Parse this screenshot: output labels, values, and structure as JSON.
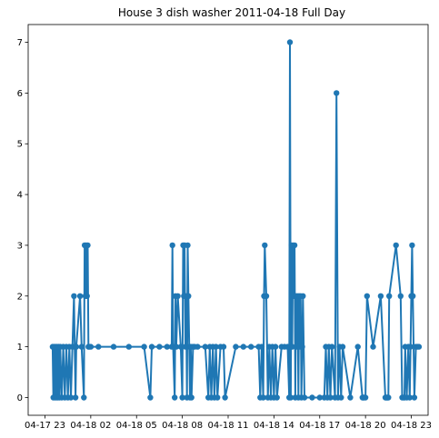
{
  "chart_data": {
    "type": "line",
    "title": "House 3 dish washer 2011-04-18 Full Day",
    "xlabel": "",
    "ylabel": "",
    "color": "#1f77b4",
    "xlim_hours": [
      -1.6,
      24.6
    ],
    "ylim": [
      -0.35,
      7.35
    ],
    "grid": false,
    "x_ticks": [
      {
        "hour": -0.5,
        "label": "04-17 23"
      },
      {
        "hour": 2.5,
        "label": "04-18 02"
      },
      {
        "hour": 5.5,
        "label": "04-18 05"
      },
      {
        "hour": 8.5,
        "label": "04-18 08"
      },
      {
        "hour": 11.5,
        "label": "04-18 11"
      },
      {
        "hour": 14.5,
        "label": "04-18 14"
      },
      {
        "hour": 17.5,
        "label": "04-18 17"
      },
      {
        "hour": 20.5,
        "label": "04-18 20"
      },
      {
        "hour": 23.5,
        "label": "04-18 23"
      }
    ],
    "y_ticks": [
      0,
      1,
      2,
      3,
      4,
      5,
      6,
      7
    ],
    "series": [
      {
        "x_hours": [
          0.0,
          0.05,
          0.1,
          0.15,
          0.2,
          0.25,
          0.3,
          0.35,
          0.4,
          0.45,
          0.5,
          0.6,
          0.7,
          0.8,
          0.9,
          1.0,
          1.1,
          1.2,
          1.3,
          1.4,
          1.45,
          1.5,
          1.55,
          1.8,
          1.9,
          2.05,
          2.1,
          2.15,
          2.2,
          2.25,
          2.3,
          2.35,
          2.4,
          2.5,
          3.0,
          4.0,
          5.0,
          6.0,
          6.4,
          6.5,
          7.0,
          7.5,
          7.8,
          7.85,
          7.9,
          8.0,
          8.05,
          8.1,
          8.2,
          8.4,
          8.5,
          8.55,
          8.6,
          8.65,
          8.7,
          8.75,
          8.8,
          8.85,
          8.9,
          8.95,
          9.0,
          9.05,
          9.1,
          9.2,
          9.3,
          9.5,
          10.0,
          10.2,
          10.3,
          10.4,
          10.5,
          10.6,
          10.7,
          10.8,
          11.0,
          11.2,
          11.3,
          12.0,
          12.5,
          13.0,
          13.5,
          13.6,
          13.7,
          13.8,
          13.85,
          13.9,
          14.0,
          14.1,
          14.2,
          14.3,
          14.4,
          14.5,
          14.6,
          14.7,
          15.0,
          15.2,
          15.4,
          15.5,
          15.55,
          15.6,
          15.65,
          15.7,
          15.75,
          15.8,
          15.85,
          15.9,
          15.95,
          16.0,
          16.05,
          16.1,
          16.15,
          16.2,
          16.25,
          16.3,
          16.35,
          16.4,
          16.5,
          17.0,
          17.5,
          17.8,
          17.9,
          18.0,
          18.1,
          18.2,
          18.3,
          18.5,
          18.6,
          18.7,
          18.8,
          18.9,
          19.0,
          19.5,
          20.0,
          20.3,
          20.35,
          20.4,
          20.5,
          20.6,
          21.0,
          21.5,
          21.8,
          21.85,
          21.9,
          21.95,
          22.0,
          22.05,
          22.5,
          22.8,
          22.9,
          23.0,
          23.05,
          23.1,
          23.2,
          23.3,
          23.4,
          23.45,
          23.5,
          23.55,
          23.6,
          23.7,
          23.8,
          23.9,
          24.0
        ],
        "y_values": [
          1,
          0,
          1,
          0,
          1,
          0,
          1,
          0,
          1,
          0,
          1,
          0,
          1,
          0,
          1,
          0,
          1,
          0,
          1,
          2,
          1,
          0,
          1,
          2,
          1,
          0,
          3,
          2,
          3,
          2,
          3,
          1,
          1,
          1,
          1,
          1,
          1,
          1,
          0,
          1,
          1,
          1,
          1,
          3,
          1,
          0,
          2,
          1,
          2,
          1,
          0,
          3,
          2,
          3,
          1,
          2,
          0,
          3,
          2,
          1,
          0,
          1,
          0,
          1,
          1,
          1,
          1,
          0,
          1,
          0,
          1,
          0,
          1,
          0,
          1,
          1,
          0,
          1,
          1,
          1,
          1,
          0,
          1,
          0,
          2,
          3,
          2,
          0,
          1,
          0,
          1,
          0,
          1,
          0,
          1,
          1,
          1,
          0,
          7,
          0,
          3,
          1,
          3,
          2,
          3,
          0,
          2,
          1,
          2,
          0,
          2,
          1,
          2,
          0,
          1,
          2,
          0,
          0,
          0,
          0,
          1,
          0,
          1,
          0,
          1,
          0,
          6,
          0,
          1,
          0,
          1,
          0,
          1,
          0,
          0,
          0,
          0,
          2,
          1,
          2,
          0,
          0,
          0,
          0,
          0,
          2,
          3,
          2,
          0,
          0,
          0,
          1,
          0,
          1,
          0,
          1,
          2,
          3,
          2,
          0,
          1,
          1,
          1
        ],
        "marker": "o"
      }
    ]
  }
}
